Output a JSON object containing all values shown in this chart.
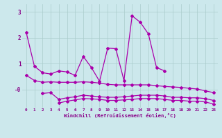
{
  "xlabel": "Windchill (Refroidissement éolien,°C)",
  "background_color": "#cce8ec",
  "grid_color": "#aacccc",
  "line_color": "#aa00aa",
  "xmin": -0.5,
  "xmax": 23.5,
  "ymin": -0.7,
  "ymax": 3.3,
  "line1_y": [
    2.2,
    0.9,
    0.65,
    0.6,
    0.72,
    0.68,
    0.55,
    1.28,
    0.85,
    0.32,
    1.6,
    1.58,
    0.35,
    2.85,
    2.6,
    2.15,
    0.85,
    0.72,
    null,
    null,
    null,
    null,
    null,
    null
  ],
  "line2_y": [
    0.55,
    0.35,
    0.28,
    0.3,
    0.28,
    0.28,
    0.28,
    0.3,
    0.28,
    0.25,
    0.2,
    0.18,
    0.18,
    0.18,
    0.18,
    0.18,
    0.15,
    0.12,
    0.1,
    0.08,
    0.05,
    0.02,
    -0.05,
    -0.12
  ],
  "line3_y": [
    null,
    null,
    -0.15,
    -0.12,
    -0.38,
    -0.32,
    -0.28,
    -0.22,
    -0.25,
    -0.28,
    -0.3,
    -0.3,
    -0.28,
    -0.25,
    -0.22,
    -0.22,
    -0.22,
    -0.25,
    -0.3,
    -0.3,
    -0.32,
    -0.32,
    -0.35,
    -0.42
  ],
  "line4_y": [
    null,
    null,
    null,
    null,
    -0.52,
    -0.45,
    -0.4,
    -0.35,
    -0.36,
    -0.38,
    -0.42,
    -0.42,
    -0.4,
    -0.38,
    -0.35,
    -0.35,
    -0.35,
    -0.38,
    -0.42,
    -0.42,
    -0.45,
    -0.45,
    -0.48,
    -0.56
  ]
}
